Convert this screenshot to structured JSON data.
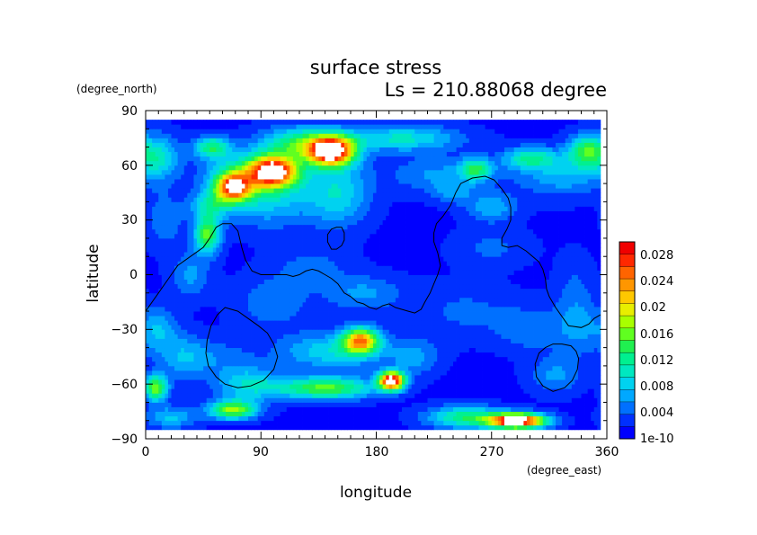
{
  "chart_data": {
    "type": "heatmap",
    "title": "surface stress",
    "subtitle": "Ls = 210.88068 degree",
    "xlabel": "longitude",
    "ylabel": "latitude",
    "x_units": "(degree_east)",
    "y_units": "(degree_north)",
    "xlim": [
      0,
      360
    ],
    "ylim": [
      -90,
      90
    ],
    "x_ticks": [
      "0",
      "90",
      "180",
      "270",
      "360"
    ],
    "y_ticks": [
      "90",
      "60",
      "30",
      "0",
      "−30",
      "−60",
      "−90"
    ],
    "data_lon_range": [
      0,
      355
    ],
    "data_lat_range": [
      -85,
      85
    ],
    "colorbar": {
      "min_label": "1e-10",
      "labels": [
        "1e-10",
        "0.004",
        "0.008",
        "0.012",
        "0.016",
        "0.02",
        "0.024",
        "0.028"
      ],
      "levels": [
        0,
        0.002,
        0.004,
        0.006,
        0.008,
        0.01,
        0.012,
        0.014,
        0.016,
        0.018,
        0.02,
        0.022,
        0.024,
        0.026,
        0.028,
        0.03
      ],
      "colors": [
        "#0000ff",
        "#0030ff",
        "#0070ff",
        "#00a8ff",
        "#00d2f0",
        "#00e8c0",
        "#00f090",
        "#20f050",
        "#60ff20",
        "#a8ff00",
        "#e8ee00",
        "#ffc800",
        "#ff9600",
        "#ff6400",
        "#ff2800",
        "#f00000"
      ],
      "above_max_color": "#ffffff"
    },
    "background_level": 0.0015,
    "hotspots": [
      {
        "lon": 145,
        "lat": 68,
        "peak": 0.031,
        "rlon": 18,
        "rlat": 8
      },
      {
        "lon": 120,
        "lat": 72,
        "peak": 0.012,
        "rlon": 30,
        "rlat": 9
      },
      {
        "lon": 100,
        "lat": 57,
        "peak": 0.025,
        "rlon": 18,
        "rlat": 8
      },
      {
        "lon": 68,
        "lat": 48,
        "peak": 0.023,
        "rlon": 14,
        "rlat": 8
      },
      {
        "lon": 85,
        "lat": 55,
        "peak": 0.011,
        "rlon": 35,
        "rlat": 12
      },
      {
        "lon": 52,
        "lat": 70,
        "peak": 0.012,
        "rlon": 14,
        "rlat": 6
      },
      {
        "lon": 200,
        "lat": 75,
        "peak": 0.009,
        "rlon": 45,
        "rlat": 7
      },
      {
        "lon": 10,
        "lat": 65,
        "peak": 0.009,
        "rlon": 16,
        "rlat": 12
      },
      {
        "lon": 150,
        "lat": 45,
        "peak": 0.008,
        "rlon": 25,
        "rlat": 18
      },
      {
        "lon": 95,
        "lat": 40,
        "peak": 0.006,
        "rlon": 35,
        "rlat": 15
      },
      {
        "lon": 258,
        "lat": 58,
        "peak": 0.011,
        "rlon": 12,
        "rlat": 6
      },
      {
        "lon": 300,
        "lat": 64,
        "peak": 0.01,
        "rlon": 20,
        "rlat": 6
      },
      {
        "lon": 345,
        "lat": 68,
        "peak": 0.013,
        "rlon": 15,
        "rlat": 9
      },
      {
        "lon": 325,
        "lat": 55,
        "peak": 0.006,
        "rlon": 35,
        "rlat": 12
      },
      {
        "lon": 270,
        "lat": 37,
        "peak": 0.006,
        "rlon": 20,
        "rlat": 8
      },
      {
        "lon": 230,
        "lat": 55,
        "peak": 0.005,
        "rlon": 40,
        "rlat": 10
      },
      {
        "lon": 240,
        "lat": 45,
        "peak": 0.004,
        "rlon": 15,
        "rlat": 6
      },
      {
        "lon": 48,
        "lat": 22,
        "peak": 0.015,
        "rlon": 10,
        "rlat": 10
      },
      {
        "lon": 50,
        "lat": 38,
        "peak": 0.008,
        "rlon": 15,
        "rlat": 8
      },
      {
        "lon": 35,
        "lat": 0,
        "peak": 0.005,
        "rlon": 15,
        "rlat": 12
      },
      {
        "lon": 170,
        "lat": -10,
        "peak": 0.005,
        "rlon": 30,
        "rlat": 10
      },
      {
        "lon": 130,
        "lat": 5,
        "peak": 0.003,
        "rlon": 30,
        "rlat": 10
      },
      {
        "lon": 10,
        "lat": -30,
        "peak": 0.006,
        "rlon": 15,
        "rlat": 12
      },
      {
        "lon": 168,
        "lat": -36,
        "peak": 0.022,
        "rlon": 14,
        "rlat": 7
      },
      {
        "lon": 145,
        "lat": -42,
        "peak": 0.008,
        "rlon": 40,
        "rlat": 10
      },
      {
        "lon": 192,
        "lat": -58,
        "peak": 0.031,
        "rlon": 10,
        "rlat": 5
      },
      {
        "lon": 140,
        "lat": -62,
        "peak": 0.015,
        "rlon": 38,
        "rlat": 6
      },
      {
        "lon": 80,
        "lat": -60,
        "peak": 0.008,
        "rlon": 25,
        "rlat": 10
      },
      {
        "lon": 8,
        "lat": -62,
        "peak": 0.016,
        "rlon": 9,
        "rlat": 7
      },
      {
        "lon": 30,
        "lat": -45,
        "peak": 0.006,
        "rlon": 20,
        "rlat": 12
      },
      {
        "lon": 68,
        "lat": -74,
        "peak": 0.017,
        "rlon": 18,
        "rlat": 5
      },
      {
        "lon": 20,
        "lat": -78,
        "peak": 0.007,
        "rlon": 20,
        "rlat": 6
      },
      {
        "lon": 290,
        "lat": -80,
        "peak": 0.033,
        "rlon": 22,
        "rlat": 4
      },
      {
        "lon": 250,
        "lat": -78,
        "peak": 0.012,
        "rlon": 30,
        "rlat": 6
      },
      {
        "lon": 250,
        "lat": -20,
        "peak": 0.003,
        "rlon": 40,
        "rlat": 15
      },
      {
        "lon": 300,
        "lat": -30,
        "peak": 0.004,
        "rlon": 25,
        "rlat": 12
      },
      {
        "lon": 340,
        "lat": -30,
        "peak": 0.004,
        "rlon": 20,
        "rlat": 15
      },
      {
        "lon": 335,
        "lat": -10,
        "peak": 0.003,
        "rlon": 15,
        "rlat": 20
      },
      {
        "lon": 15,
        "lat": 30,
        "peak": 0.004,
        "rlon": 15,
        "rlat": 15
      },
      {
        "lon": 100,
        "lat": -15,
        "peak": 0.004,
        "rlon": 30,
        "rlat": 15
      },
      {
        "lon": 210,
        "lat": -45,
        "peak": 0.005,
        "rlon": 20,
        "rlat": 10
      },
      {
        "lon": 320,
        "lat": -55,
        "peak": 0.005,
        "rlon": 20,
        "rlat": 10
      },
      {
        "lon": 60,
        "lat": -45,
        "peak": 0.003,
        "rlon": 25,
        "rlat": 10
      },
      {
        "lon": 270,
        "lat": 15,
        "peak": 0.003,
        "rlon": 30,
        "rlat": 10
      }
    ],
    "contours": [
      {
        "name": "dichotomy-boundary",
        "closed": false,
        "points": [
          [
            0,
            -20
          ],
          [
            10,
            -10
          ],
          [
            15,
            -5
          ],
          [
            25,
            5
          ],
          [
            35,
            10
          ],
          [
            45,
            15
          ],
          [
            50,
            20
          ],
          [
            55,
            26
          ],
          [
            60,
            28
          ],
          [
            67,
            28
          ],
          [
            72,
            24
          ],
          [
            75,
            15
          ],
          [
            78,
            8
          ],
          [
            83,
            2
          ],
          [
            90,
            0
          ],
          [
            100,
            0
          ],
          [
            110,
            0
          ],
          [
            115,
            -1
          ],
          [
            120,
            0
          ],
          [
            125,
            2
          ],
          [
            130,
            3
          ],
          [
            135,
            2
          ],
          [
            140,
            0
          ],
          [
            145,
            -2
          ],
          [
            150,
            -5
          ],
          [
            155,
            -10
          ],
          [
            160,
            -12
          ],
          [
            165,
            -15
          ],
          [
            170,
            -16
          ],
          [
            175,
            -18
          ],
          [
            180,
            -19
          ],
          [
            185,
            -17
          ],
          [
            190,
            -16
          ],
          [
            195,
            -18
          ],
          [
            205,
            -20
          ],
          [
            210,
            -21
          ],
          [
            215,
            -19
          ],
          [
            218,
            -15
          ],
          [
            222,
            -10
          ],
          [
            225,
            -5
          ],
          [
            228,
            0
          ],
          [
            230,
            5
          ],
          [
            228,
            12
          ],
          [
            225,
            18
          ],
          [
            225,
            23
          ],
          [
            227,
            28
          ],
          [
            232,
            32
          ],
          [
            238,
            38
          ],
          [
            242,
            45
          ],
          [
            246,
            50
          ],
          [
            255,
            53
          ],
          [
            265,
            54
          ],
          [
            272,
            52
          ],
          [
            278,
            47
          ],
          [
            283,
            42
          ],
          [
            285,
            37
          ],
          [
            285,
            30
          ],
          [
            282,
            25
          ],
          [
            278,
            20
          ],
          [
            278,
            16
          ],
          [
            283,
            15
          ],
          [
            290,
            16
          ],
          [
            297,
            13
          ],
          [
            302,
            10
          ],
          [
            307,
            7
          ],
          [
            310,
            3
          ],
          [
            312,
            -2
          ],
          [
            313,
            -8
          ],
          [
            315,
            -12
          ],
          [
            320,
            -18
          ],
          [
            325,
            -23
          ],
          [
            330,
            -28
          ],
          [
            340,
            -29
          ],
          [
            346,
            -27
          ],
          [
            350,
            -24
          ],
          [
            355,
            -22
          ]
        ]
      },
      {
        "name": "hellas-basin",
        "closed": true,
        "points": [
          [
            62,
            -18
          ],
          [
            72,
            -20
          ],
          [
            80,
            -24
          ],
          [
            88,
            -28
          ],
          [
            95,
            -32
          ],
          [
            100,
            -38
          ],
          [
            103,
            -45
          ],
          [
            100,
            -52
          ],
          [
            92,
            -58
          ],
          [
            82,
            -61
          ],
          [
            72,
            -62
          ],
          [
            62,
            -60
          ],
          [
            55,
            -56
          ],
          [
            49,
            -50
          ],
          [
            47,
            -43
          ],
          [
            48,
            -36
          ],
          [
            51,
            -28
          ],
          [
            56,
            -22
          ]
        ]
      },
      {
        "name": "argyre-basin",
        "closed": true,
        "points": [
          [
            325,
            -38
          ],
          [
            332,
            -39
          ],
          [
            336,
            -42
          ],
          [
            338,
            -46
          ],
          [
            337,
            -52
          ],
          [
            333,
            -58
          ],
          [
            327,
            -62
          ],
          [
            318,
            -64
          ],
          [
            310,
            -61
          ],
          [
            305,
            -56
          ],
          [
            304,
            -49
          ],
          [
            307,
            -43
          ],
          [
            312,
            -40
          ],
          [
            318,
            -38
          ]
        ]
      },
      {
        "name": "elysium-rise",
        "closed": true,
        "points": [
          [
            145,
            25
          ],
          [
            149,
            26
          ],
          [
            153,
            26
          ],
          [
            155,
            23
          ],
          [
            155,
            19
          ],
          [
            153,
            16
          ],
          [
            149,
            14
          ],
          [
            145,
            14
          ],
          [
            142,
            18
          ],
          [
            142,
            22
          ]
        ]
      }
    ]
  }
}
